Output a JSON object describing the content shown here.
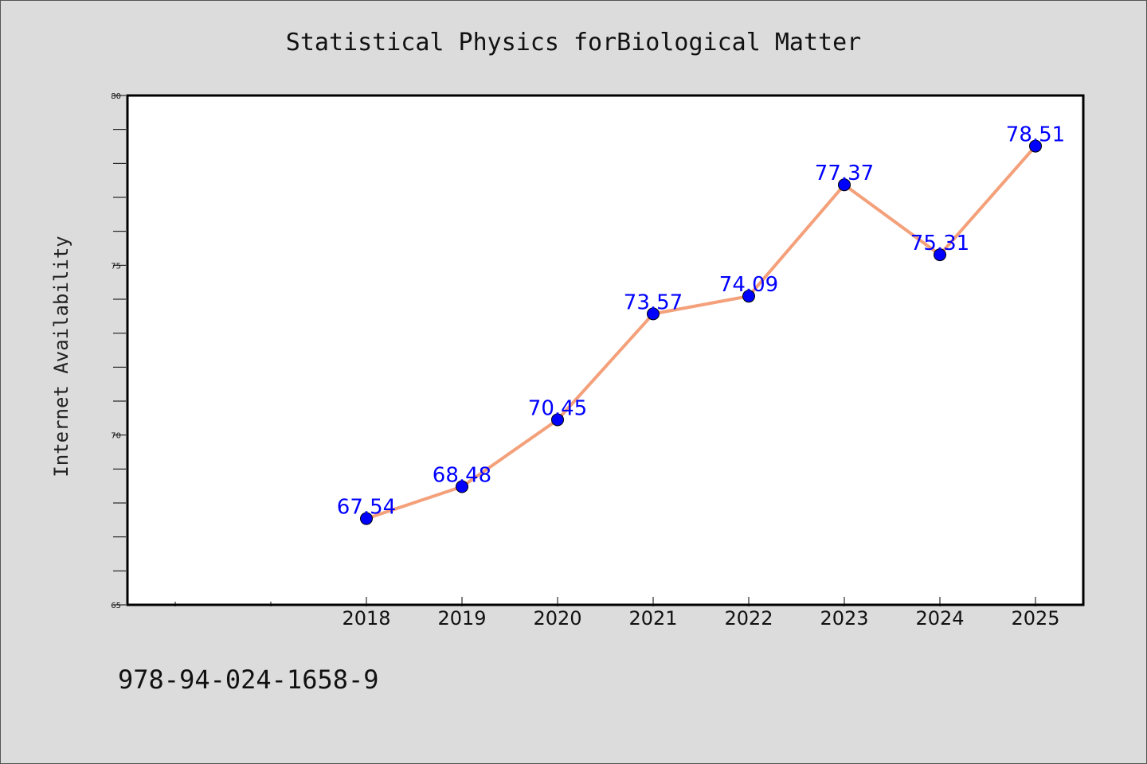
{
  "chart_data": {
    "type": "line",
    "title": "Statistical Physics forBiological Matter",
    "xlabel": "",
    "ylabel": "Internet Availability",
    "categories": [
      "2018",
      "2019",
      "2020",
      "2021",
      "2022",
      "2023",
      "2024",
      "2025"
    ],
    "values": [
      67.54,
      68.48,
      70.45,
      73.57,
      74.09,
      77.37,
      75.31,
      78.51
    ],
    "data_labels": [
      "67.54",
      "68.48",
      "70.45",
      "73.57",
      "74.09",
      "77.37",
      "75.31",
      "78.51"
    ],
    "ylim": [
      65,
      80
    ],
    "yticks": [
      "65",
      "70",
      "75",
      "80"
    ],
    "grid": false,
    "legend": "none",
    "colors": {
      "line": "#f4a07a",
      "marker": "#0000ff",
      "labels": "#0000ff",
      "background": "#dcdcdc",
      "plot_bg": "#ffffff"
    }
  },
  "footer": {
    "isbn": "978-94-024-1658-9"
  }
}
